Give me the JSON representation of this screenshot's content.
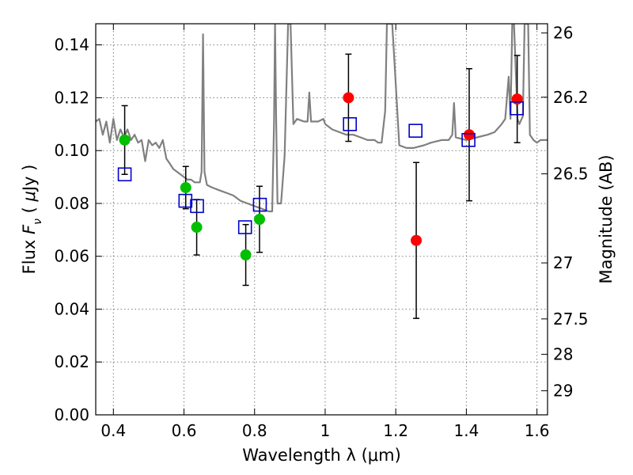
{
  "chart_data": {
    "type": "scatter",
    "title": "",
    "xlabel": "Wavelength  λ (μm)",
    "ylabel_parts": [
      "Flux  ",
      "F",
      "ν",
      "  ( ",
      "μ",
      "Jy )"
    ],
    "y2label": "Magnitude (AB)",
    "xlim": [
      0.35,
      1.63
    ],
    "ylim": [
      0.0,
      0.148
    ],
    "grid": true,
    "x_ticks": [
      0.4,
      0.6,
      0.8,
      1.0,
      1.2,
      1.4,
      1.6
    ],
    "x_tick_labels": [
      "0.4",
      "0.6",
      "0.8",
      "1",
      "1.2",
      "1.4",
      "1.6"
    ],
    "y_ticks": [
      0.0,
      0.02,
      0.04,
      0.06,
      0.08,
      0.1,
      0.12,
      0.14
    ],
    "y_tick_labels": [
      "0.00",
      "0.02",
      "0.04",
      "0.06",
      "0.08",
      "0.10",
      "0.12",
      "0.14"
    ],
    "y2_ticks": [
      {
        "label": "26",
        "flux": 0.1445
      },
      {
        "label": "26.2",
        "flux": 0.1202
      },
      {
        "label": "26.5",
        "flux": 0.0912
      },
      {
        "label": "27",
        "flux": 0.0575
      },
      {
        "label": "27.5",
        "flux": 0.0363
      },
      {
        "label": "28",
        "flux": 0.0229
      },
      {
        "label": "29",
        "flux": 0.0091
      }
    ],
    "series": [
      {
        "kind": "line",
        "color": "#808080",
        "points": [
          [
            0.35,
            0.111
          ],
          [
            0.36,
            0.112
          ],
          [
            0.37,
            0.106
          ],
          [
            0.38,
            0.111
          ],
          [
            0.39,
            0.103
          ],
          [
            0.4,
            0.112
          ],
          [
            0.41,
            0.104
          ],
          [
            0.42,
            0.108
          ],
          [
            0.43,
            0.105
          ],
          [
            0.44,
            0.108
          ],
          [
            0.45,
            0.104
          ],
          [
            0.46,
            0.106
          ],
          [
            0.47,
            0.103
          ],
          [
            0.48,
            0.104
          ],
          [
            0.49,
            0.096
          ],
          [
            0.5,
            0.104
          ],
          [
            0.51,
            0.102
          ],
          [
            0.52,
            0.103
          ],
          [
            0.53,
            0.101
          ],
          [
            0.54,
            0.104
          ],
          [
            0.55,
            0.097
          ],
          [
            0.56,
            0.095
          ],
          [
            0.57,
            0.093
          ],
          [
            0.58,
            0.092
          ],
          [
            0.59,
            0.091
          ],
          [
            0.6,
            0.09
          ],
          [
            0.61,
            0.089
          ],
          [
            0.62,
            0.089
          ],
          [
            0.63,
            0.088
          ],
          [
            0.64,
            0.088
          ],
          [
            0.645,
            0.088
          ],
          [
            0.65,
            0.092
          ],
          [
            0.654,
            0.144
          ],
          [
            0.658,
            0.092
          ],
          [
            0.665,
            0.087
          ],
          [
            0.68,
            0.086
          ],
          [
            0.7,
            0.085
          ],
          [
            0.72,
            0.084
          ],
          [
            0.74,
            0.083
          ],
          [
            0.76,
            0.081
          ],
          [
            0.78,
            0.08
          ],
          [
            0.8,
            0.079
          ],
          [
            0.82,
            0.078
          ],
          [
            0.84,
            0.077
          ],
          [
            0.85,
            0.077
          ],
          [
            0.855,
            0.11
          ],
          [
            0.858,
            0.148
          ],
          [
            0.861,
            0.112
          ],
          [
            0.865,
            0.08
          ],
          [
            0.875,
            0.08
          ],
          [
            0.885,
            0.098
          ],
          [
            0.895,
            0.148
          ],
          [
            0.902,
            0.148
          ],
          [
            0.91,
            0.11
          ],
          [
            0.92,
            0.112
          ],
          [
            0.94,
            0.111
          ],
          [
            0.95,
            0.111
          ],
          [
            0.955,
            0.122
          ],
          [
            0.96,
            0.111
          ],
          [
            0.98,
            0.111
          ],
          [
            0.995,
            0.112
          ],
          [
            1.0,
            0.11
          ],
          [
            1.02,
            0.108
          ],
          [
            1.04,
            0.107
          ],
          [
            1.06,
            0.106
          ],
          [
            1.08,
            0.106
          ],
          [
            1.1,
            0.105
          ],
          [
            1.12,
            0.104
          ],
          [
            1.14,
            0.104
          ],
          [
            1.15,
            0.103
          ],
          [
            1.16,
            0.103
          ],
          [
            1.17,
            0.115
          ],
          [
            1.175,
            0.148
          ],
          [
            1.19,
            0.148
          ],
          [
            1.2,
            0.125
          ],
          [
            1.21,
            0.102
          ],
          [
            1.23,
            0.101
          ],
          [
            1.25,
            0.101
          ],
          [
            1.28,
            0.102
          ],
          [
            1.3,
            0.103
          ],
          [
            1.33,
            0.104
          ],
          [
            1.35,
            0.104
          ],
          [
            1.36,
            0.106
          ],
          [
            1.365,
            0.118
          ],
          [
            1.37,
            0.105
          ],
          [
            1.4,
            0.104
          ],
          [
            1.43,
            0.105
          ],
          [
            1.46,
            0.106
          ],
          [
            1.48,
            0.107
          ],
          [
            1.5,
            0.11
          ],
          [
            1.51,
            0.112
          ],
          [
            1.52,
            0.128
          ],
          [
            1.525,
            0.112
          ],
          [
            1.53,
            0.148
          ],
          [
            1.535,
            0.148
          ],
          [
            1.545,
            0.112
          ],
          [
            1.55,
            0.11
          ],
          [
            1.56,
            0.113
          ],
          [
            1.565,
            0.148
          ],
          [
            1.575,
            0.148
          ],
          [
            1.58,
            0.106
          ],
          [
            1.59,
            0.104
          ],
          [
            1.6,
            0.103
          ],
          [
            1.61,
            0.104
          ],
          [
            1.63,
            0.104
          ]
        ]
      },
      {
        "kind": "points",
        "marker": "circle",
        "color": "#00bf00",
        "points": [
          {
            "x": 0.432,
            "y": 0.104,
            "err": 0.013
          },
          {
            "x": 0.605,
            "y": 0.086,
            "err": 0.008
          },
          {
            "x": 0.636,
            "y": 0.071,
            "err": 0.0105
          },
          {
            "x": 0.775,
            "y": 0.0605,
            "err": 0.0115
          },
          {
            "x": 0.814,
            "y": 0.074,
            "err": 0.0125
          }
        ]
      },
      {
        "kind": "points",
        "marker": "circle",
        "color": "#ff0000",
        "points": [
          {
            "x": 1.066,
            "y": 0.12,
            "err": 0.0165
          },
          {
            "x": 1.258,
            "y": 0.066,
            "err": 0.0295
          },
          {
            "x": 1.408,
            "y": 0.106,
            "err": 0.025
          },
          {
            "x": 1.544,
            "y": 0.1195,
            "err": 0.0165
          }
        ]
      },
      {
        "kind": "points",
        "marker": "open-square",
        "color": "#0000cc",
        "points": [
          {
            "x": 0.432,
            "y": 0.091
          },
          {
            "x": 0.604,
            "y": 0.081
          },
          {
            "x": 0.637,
            "y": 0.079
          },
          {
            "x": 0.773,
            "y": 0.071
          },
          {
            "x": 0.815,
            "y": 0.0795
          },
          {
            "x": 1.07,
            "y": 0.11
          },
          {
            "x": 1.256,
            "y": 0.1075
          },
          {
            "x": 1.406,
            "y": 0.104
          },
          {
            "x": 1.543,
            "y": 0.116
          }
        ]
      }
    ]
  }
}
